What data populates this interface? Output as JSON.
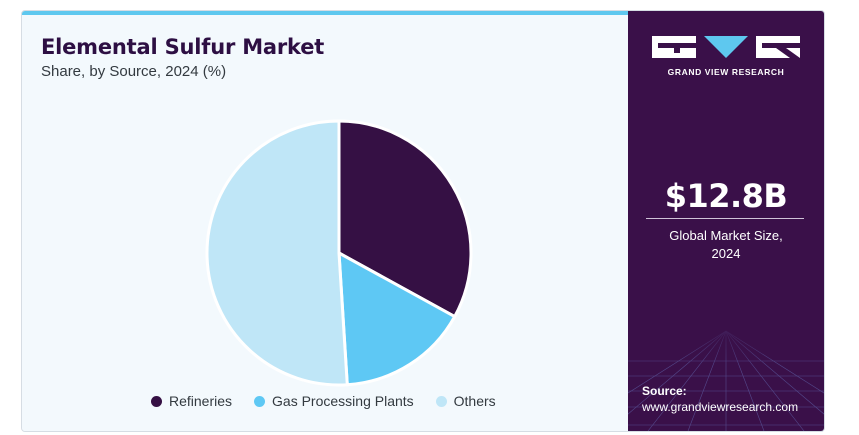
{
  "header": {
    "title": "Elemental Sulfur Market",
    "subtitle": "Share, by Source, 2024 (%)"
  },
  "chart_data": {
    "type": "pie",
    "title": "Elemental Sulfur Market",
    "subtitle": "Share, by Source, 2024 (%)",
    "categories": [
      "Refineries",
      "Gas Processing Plants",
      "Others"
    ],
    "values": [
      33,
      16,
      51
    ],
    "colors": [
      "#351044",
      "#5ec8f4",
      "#bfe6f7"
    ],
    "legend_position": "bottom"
  },
  "side_panel": {
    "logo_text": "GRAND VIEW RESEARCH",
    "market_value": "$12.8B",
    "market_label_line1": "Global Market Size,",
    "market_label_line2": "2024",
    "source_label": "Source:",
    "source_url": "www.grandviewresearch.com"
  },
  "colors": {
    "panel_bg": "#3a1049",
    "title": "#2d0f43",
    "accent": "#5ec8ef",
    "background": "#f3f9fd"
  }
}
